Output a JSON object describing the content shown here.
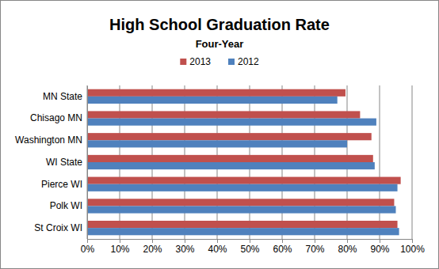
{
  "chart_data": {
    "type": "bar",
    "title": "High School Graduation Rate",
    "subtitle": "Four-Year",
    "orientation": "horizontal",
    "legend": "top",
    "grid": true,
    "categories": [
      "MN State",
      "Chisago MN",
      "Washington MN",
      "WI State",
      "Pierce WI",
      "Polk WI",
      "St Croix WI"
    ],
    "series": [
      {
        "name": "2013",
        "color": "#c0504d",
        "values": [
          79.5,
          84,
          87.5,
          88,
          96.5,
          94.5,
          95.5
        ]
      },
      {
        "name": "2012",
        "color": "#4f81bd",
        "values": [
          77,
          89,
          80,
          88.5,
          95.5,
          95,
          96
        ]
      }
    ],
    "xlim": [
      0,
      100
    ],
    "xticks": [
      {
        "value": 0,
        "label": "0%"
      },
      {
        "value": 10,
        "label": "10%"
      },
      {
        "value": 20,
        "label": "20%"
      },
      {
        "value": 30,
        "label": "30%"
      },
      {
        "value": 40,
        "label": "40%"
      },
      {
        "value": 50,
        "label": "50%"
      },
      {
        "value": 60,
        "label": "60%"
      },
      {
        "value": 70,
        "label": "70%"
      },
      {
        "value": 80,
        "label": "80%"
      },
      {
        "value": 90,
        "label": "90%"
      },
      {
        "value": 100,
        "label": "100%"
      }
    ]
  }
}
